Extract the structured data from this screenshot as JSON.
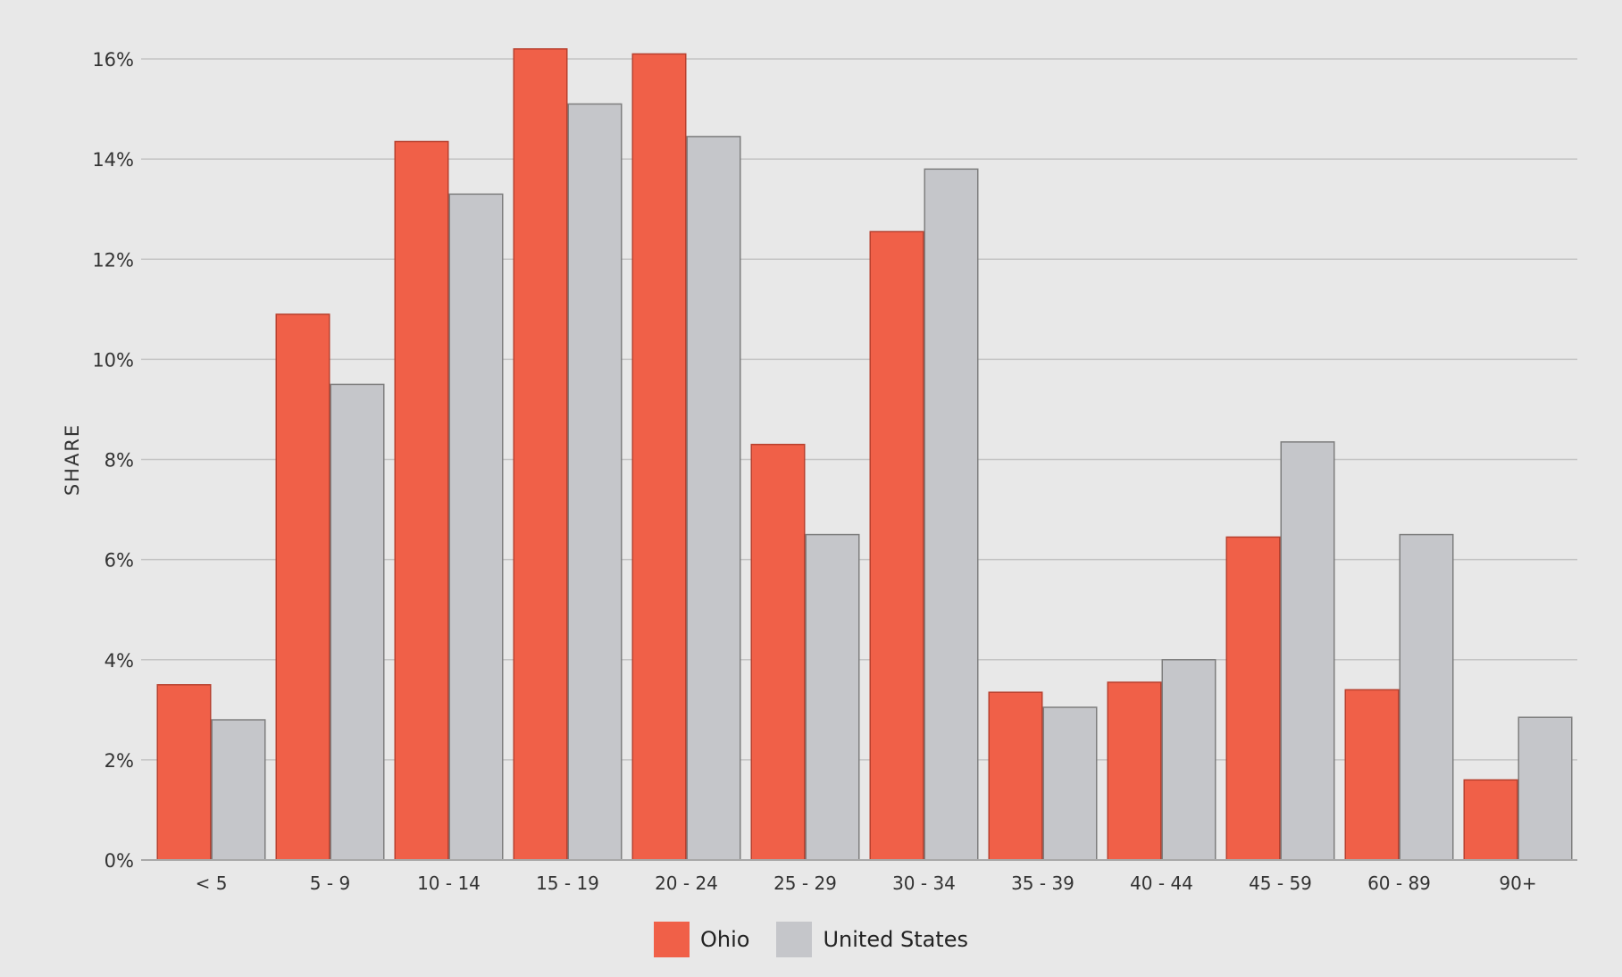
{
  "chart_data": {
    "type": "bar",
    "categories": [
      "< 5",
      "5 - 9",
      "10 - 14",
      "15 - 19",
      "20 - 24",
      "25 - 29",
      "30 - 34",
      "35 - 39",
      "40 - 44",
      "45 - 59",
      "60 - 89",
      "90+"
    ],
    "series": [
      {
        "name": "Ohio",
        "color": "#f06048",
        "stroke": "#b8402e",
        "values": [
          3.5,
          10.9,
          14.35,
          16.2,
          16.1,
          8.3,
          12.55,
          3.35,
          3.55,
          6.45,
          3.4,
          1.6
        ]
      },
      {
        "name": "United States",
        "color": "#c5c6ca",
        "stroke": "#7e7e7e",
        "values": [
          2.8,
          9.5,
          13.3,
          15.1,
          14.45,
          6.5,
          13.8,
          3.05,
          4.0,
          8.35,
          6.5,
          2.85
        ]
      }
    ],
    "title": "",
    "xlabel": "",
    "ylabel": "SHARE",
    "ylim": [
      0,
      16
    ],
    "yticks": [
      0,
      2,
      4,
      6,
      8,
      10,
      12,
      14,
      16
    ],
    "ytick_labels": [
      "0%",
      "2%",
      "4%",
      "6%",
      "8%",
      "10%",
      "12%",
      "14%",
      "16%"
    ],
    "grid": true,
    "legend_position": "bottom-center"
  }
}
